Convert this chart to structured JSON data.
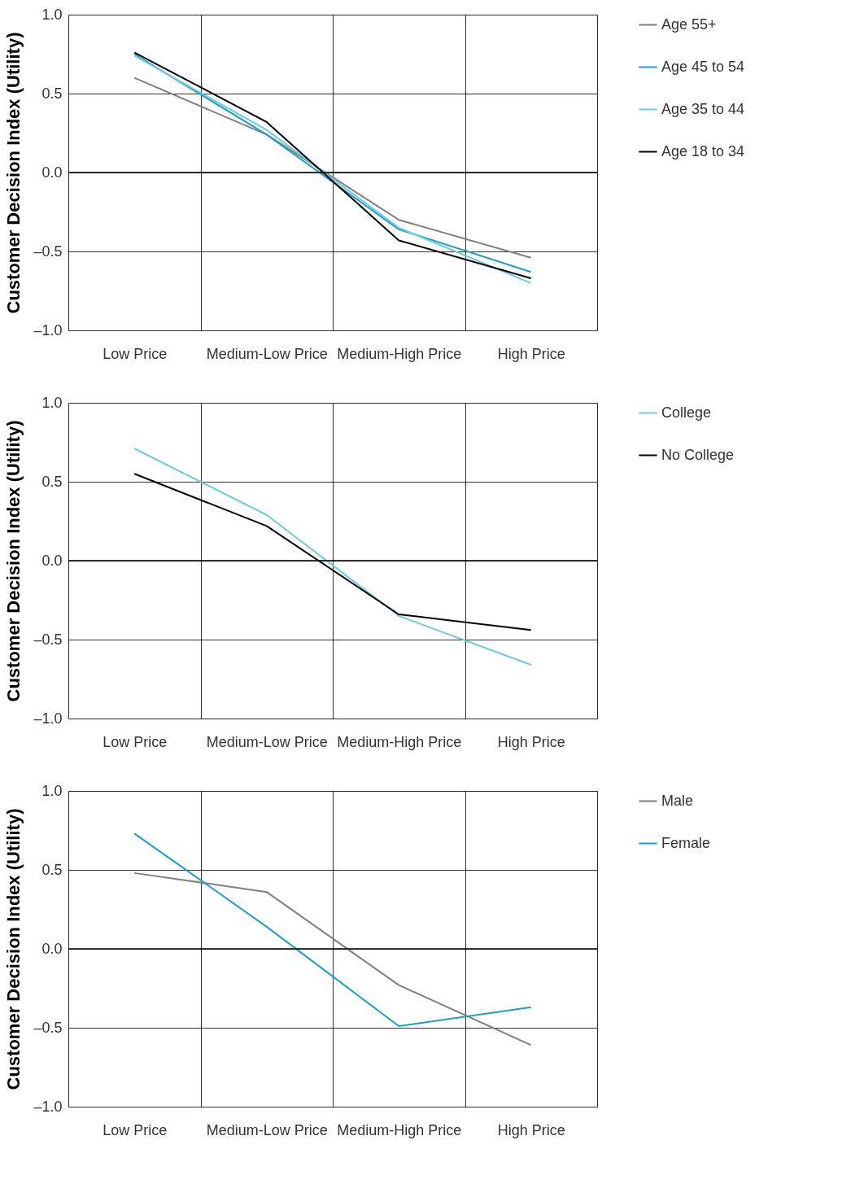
{
  "chart_data": [
    {
      "type": "line",
      "ylabel": "Customer Decision Index (Utility)",
      "categories": [
        "Low Price",
        "Medium-Low Price",
        "Medium-High Price",
        "High Price"
      ],
      "ylim": [
        -1.0,
        1.0
      ],
      "yticks": [
        {
          "value": -1.0,
          "label": "–1.0"
        },
        {
          "value": -0.5,
          "label": "–0.5"
        },
        {
          "value": 0.0,
          "label": "0.0"
        },
        {
          "value": 0.5,
          "label": "0.5"
        },
        {
          "value": 1.0,
          "label": "1.0"
        }
      ],
      "grid": true,
      "legend": "right",
      "line_style": "solid",
      "marker": "none",
      "ref_lines": [
        {
          "axis": "y",
          "value": 0,
          "color": "#000000"
        }
      ],
      "series": [
        {
          "name": "Age 55+",
          "color": "#808080",
          "values": [
            0.6,
            0.24,
            -0.3,
            -0.54
          ]
        },
        {
          "name": "Age 45 to 54",
          "color": "#1a9fc9",
          "values": [
            0.75,
            0.24,
            -0.36,
            -0.63
          ]
        },
        {
          "name": "Age 35 to 44",
          "color": "#6ccbe0",
          "values": [
            0.74,
            0.27,
            -0.35,
            -0.7
          ]
        },
        {
          "name": "Age 18 to 34",
          "color": "#000000",
          "values": [
            0.76,
            0.32,
            -0.43,
            -0.67
          ]
        }
      ]
    },
    {
      "type": "line",
      "ylabel": "Customer Decision Index (Utility)",
      "categories": [
        "Low Price",
        "Medium-Low Price",
        "Medium-High Price",
        "High Price"
      ],
      "ylim": [
        -1.0,
        1.0
      ],
      "yticks": [
        {
          "value": -1.0,
          "label": "–1.0"
        },
        {
          "value": -0.5,
          "label": "–0.5"
        },
        {
          "value": 0.0,
          "label": "0.0"
        },
        {
          "value": 0.5,
          "label": "0.5"
        },
        {
          "value": 1.0,
          "label": "1.0"
        }
      ],
      "grid": true,
      "legend": "right",
      "line_style": "solid",
      "marker": "none",
      "ref_lines": [
        {
          "axis": "y",
          "value": 0,
          "color": "#000000"
        }
      ],
      "series": [
        {
          "name": "College",
          "color": "#6ccbe0",
          "values": [
            0.71,
            0.29,
            -0.35,
            -0.66
          ]
        },
        {
          "name": "No College",
          "color": "#000000",
          "values": [
            0.55,
            0.22,
            -0.34,
            -0.44
          ]
        }
      ]
    },
    {
      "type": "line",
      "ylabel": "Customer Decision Index (Utility)",
      "categories": [
        "Low Price",
        "Medium-Low Price",
        "Medium-High Price",
        "High Price"
      ],
      "ylim": [
        -1.0,
        1.0
      ],
      "yticks": [
        {
          "value": -1.0,
          "label": "–1.0"
        },
        {
          "value": -0.5,
          "label": "–0.5"
        },
        {
          "value": 0.0,
          "label": "0.0"
        },
        {
          "value": 0.5,
          "label": "0.5"
        },
        {
          "value": 1.0,
          "label": "1.0"
        }
      ],
      "grid": true,
      "legend": "right",
      "line_style": "solid",
      "marker": "none",
      "ref_lines": [
        {
          "axis": "y",
          "value": 0,
          "color": "#000000"
        }
      ],
      "series": [
        {
          "name": "Male",
          "color": "#808080",
          "values": [
            0.48,
            0.36,
            -0.23,
            -0.61
          ]
        },
        {
          "name": "Female",
          "color": "#1a9fc9",
          "values": [
            0.73,
            0.14,
            -0.49,
            -0.37
          ]
        }
      ]
    }
  ]
}
